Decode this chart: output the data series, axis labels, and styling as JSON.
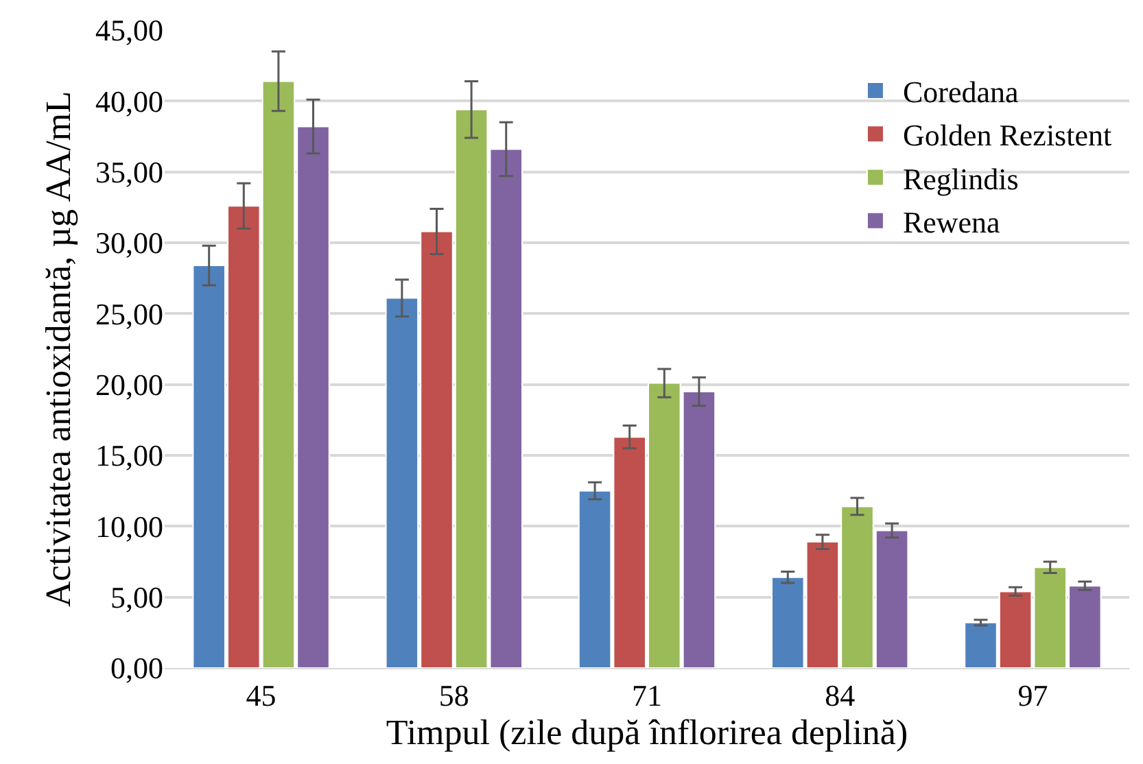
{
  "chart_data": {
    "type": "bar",
    "xlabel": "Timpul (zile după înflorirea deplină)",
    "ylabel": "Activitatea antioxidantă, µg AA/mL",
    "categories": [
      "45",
      "58",
      "71",
      "84",
      "97"
    ],
    "series": [
      {
        "name": "Coredana",
        "color": "#4f81bd",
        "values": [
          28.4,
          26.1,
          12.5,
          6.4,
          3.2
        ],
        "errors": [
          1.4,
          1.3,
          0.6,
          0.4,
          0.2
        ]
      },
      {
        "name": "Golden Rezistent",
        "color": "#c0504d",
        "values": [
          32.6,
          30.8,
          16.3,
          8.9,
          5.4
        ],
        "errors": [
          1.6,
          1.6,
          0.8,
          0.5,
          0.3
        ]
      },
      {
        "name": "Reglindis",
        "color": "#9bbb59",
        "values": [
          41.4,
          39.4,
          20.1,
          11.4,
          7.1
        ],
        "errors": [
          2.1,
          2.0,
          1.0,
          0.6,
          0.4
        ]
      },
      {
        "name": "Rewena",
        "color": "#8064a2",
        "values": [
          38.2,
          36.6,
          19.5,
          9.7,
          5.8
        ],
        "errors": [
          1.9,
          1.9,
          1.0,
          0.5,
          0.3
        ]
      }
    ],
    "ylim": [
      0,
      45
    ],
    "yticks": [
      {
        "value": 0,
        "label": "0,00"
      },
      {
        "value": 5,
        "label": "5,00"
      },
      {
        "value": 10,
        "label": "10,00"
      },
      {
        "value": 15,
        "label": "15,00"
      },
      {
        "value": 20,
        "label": "20,00"
      },
      {
        "value": 25,
        "label": "25,00"
      },
      {
        "value": 30,
        "label": "30,00"
      },
      {
        "value": 35,
        "label": "35,00"
      },
      {
        "value": 40,
        "label": "40,00"
      },
      {
        "value": 45,
        "label": "45,00"
      }
    ],
    "grid": "y",
    "legend": "top right"
  }
}
